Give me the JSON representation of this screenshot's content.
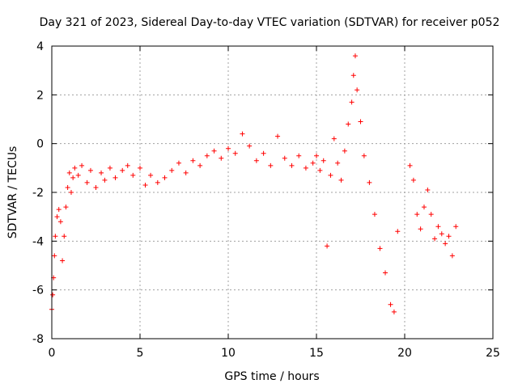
{
  "chart_data": {
    "type": "scatter",
    "title": "Day 321 of 2023, Sidereal Day-to-day VTEC variation (SDTVAR) for receiver p052",
    "xlabel": "GPS time / hours",
    "ylabel": "SDTVAR / TECUs",
    "xlim": [
      0,
      25
    ],
    "ylim": [
      -8,
      4
    ],
    "xticks": [
      0,
      5,
      10,
      15,
      20,
      25
    ],
    "yticks": [
      -8,
      -6,
      -4,
      -2,
      0,
      2,
      4
    ],
    "xtick_labels": [
      "0",
      "5",
      "10",
      "15",
      "20",
      "25"
    ],
    "ytick_labels": [
      "-8",
      "-6",
      "-4",
      "-2",
      "0",
      "2",
      "4"
    ],
    "grid": true,
    "marker": "+",
    "color": "#ff0000",
    "series": [
      {
        "name": "SDTVAR",
        "x": [
          0.0,
          0.05,
          0.1,
          0.15,
          0.2,
          0.3,
          0.4,
          0.5,
          0.6,
          0.7,
          0.8,
          0.9,
          1.0,
          1.1,
          1.2,
          1.3,
          1.5,
          1.7,
          2.0,
          2.2,
          2.5,
          2.8,
          3.0,
          3.3,
          3.6,
          4.0,
          4.3,
          4.6,
          5.0,
          5.3,
          5.6,
          6.0,
          6.4,
          6.8,
          7.2,
          7.6,
          8.0,
          8.4,
          8.8,
          9.2,
          9.6,
          10.0,
          10.4,
          10.8,
          11.2,
          11.6,
          12.0,
          12.4,
          12.8,
          13.2,
          13.6,
          14.0,
          14.4,
          14.8,
          15.0,
          15.2,
          15.4,
          15.6,
          15.8,
          16.0,
          16.2,
          16.4,
          16.6,
          16.8,
          17.0,
          17.1,
          17.2,
          17.3,
          17.5,
          17.7,
          18.0,
          18.3,
          18.6,
          18.9,
          19.2,
          19.4,
          19.6,
          20.3,
          20.5,
          20.7,
          20.9,
          21.1,
          21.3,
          21.5,
          21.7,
          21.9,
          22.1,
          22.3,
          22.5,
          22.7,
          22.9
        ],
        "y": [
          -6.8,
          -6.2,
          -5.5,
          -4.6,
          -3.8,
          -3.0,
          -2.7,
          -3.2,
          -4.8,
          -3.8,
          -2.6,
          -1.8,
          -1.2,
          -2.0,
          -1.4,
          -1.0,
          -1.3,
          -0.9,
          -1.6,
          -1.1,
          -1.8,
          -1.2,
          -1.5,
          -1.0,
          -1.4,
          -1.1,
          -0.9,
          -1.3,
          -1.0,
          -1.7,
          -1.3,
          -1.6,
          -1.4,
          -1.1,
          -0.8,
          -1.2,
          -0.7,
          -0.9,
          -0.5,
          -0.3,
          -0.6,
          -0.2,
          -0.4,
          0.4,
          -0.1,
          -0.7,
          -0.4,
          -0.9,
          0.3,
          -0.6,
          -0.9,
          -0.5,
          -1.0,
          -0.8,
          -0.5,
          -1.1,
          -0.7,
          -4.2,
          -1.3,
          0.2,
          -0.8,
          -1.5,
          -0.3,
          0.8,
          1.7,
          2.8,
          3.6,
          2.2,
          0.9,
          -0.5,
          -1.6,
          -2.9,
          -4.3,
          -5.3,
          -6.6,
          -6.9,
          -3.6,
          -0.9,
          -1.5,
          -2.9,
          -3.5,
          -2.6,
          -1.9,
          -2.9,
          -3.9,
          -3.4,
          -3.7,
          -4.1,
          -3.8,
          -4.6,
          -3.4
        ]
      }
    ]
  }
}
